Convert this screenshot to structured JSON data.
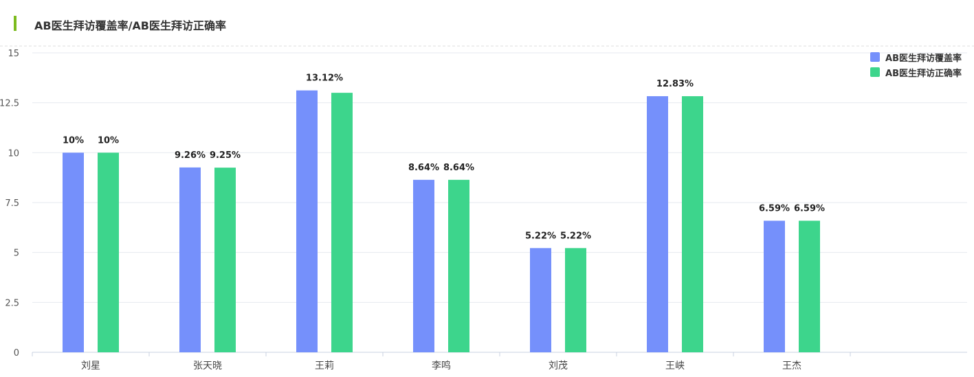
{
  "header": {
    "title": "AB医生拜访覆盖率/AB医生拜访正确率",
    "accent_color": "#7cbb1e"
  },
  "chart_data": {
    "type": "bar",
    "title": "AB医生拜访覆盖率/AB医生拜访正确率",
    "categories": [
      "刘星",
      "张天晓",
      "王莉",
      "李鸣",
      "刘茂",
      "王峡",
      "王杰"
    ],
    "series": [
      {
        "name": "AB医生拜访覆盖率",
        "color": "#7590fb",
        "values": [
          10,
          9.26,
          13.12,
          8.64,
          5.22,
          12.83,
          6.59
        ],
        "labels": [
          "10%",
          "9.26%",
          "",
          "8.64%",
          "5.22%",
          "",
          "6.59%"
        ]
      },
      {
        "name": "AB医生拜访正确率",
        "color": "#3dd58c",
        "values": [
          10,
          9.25,
          13.0,
          8.64,
          5.22,
          12.83,
          6.59
        ],
        "labels": [
          "10%",
          "9.25%",
          "",
          "8.64%",
          "5.22%",
          "",
          "6.59%"
        ]
      }
    ],
    "group_labels": [
      "",
      "",
      "13.12%",
      "",
      "",
      "12.83%",
      ""
    ],
    "ylim": [
      0,
      15
    ],
    "yticks": [
      "0",
      "2.5",
      "5",
      "7.5",
      "10",
      "12.5",
      "15"
    ],
    "xlabel": "",
    "ylabel": "",
    "grid": true,
    "legend_position": "top-right"
  }
}
